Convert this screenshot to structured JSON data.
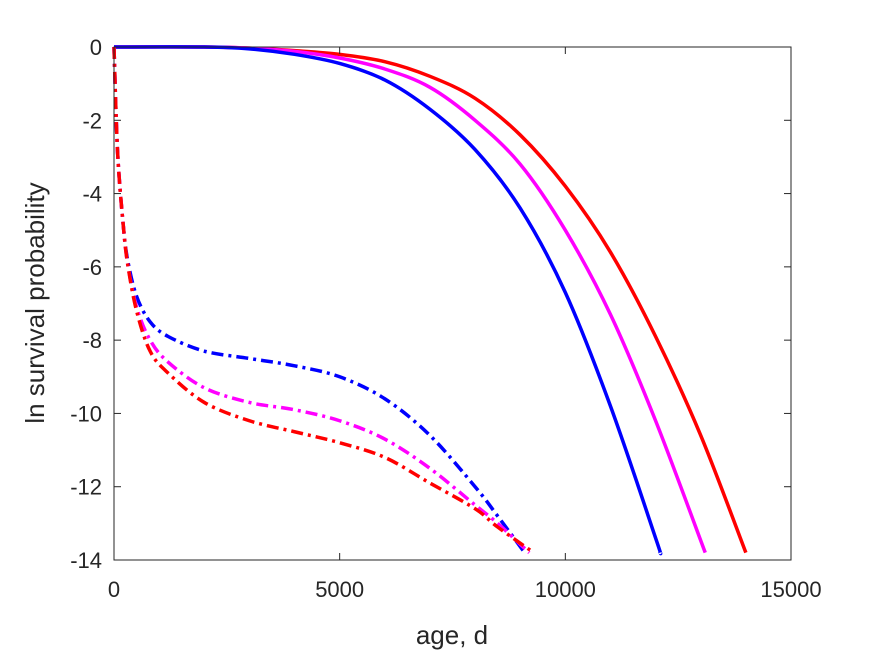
{
  "chart_data": {
    "type": "line",
    "title": "",
    "xlabel": "age, d",
    "ylabel": "ln survival probability",
    "xlim": [
      0,
      15000
    ],
    "ylim": [
      -14,
      0
    ],
    "xticks": [
      0,
      5000,
      10000,
      15000
    ],
    "yticks": [
      0,
      -2,
      -4,
      -6,
      -8,
      -10,
      -12,
      -14
    ],
    "grid": false,
    "legend": "none",
    "series": [
      {
        "color": "#ff0000",
        "style": "solid",
        "x": [
          0,
          2000,
          3000,
          4000,
          5000,
          6000,
          7000,
          8000,
          9000,
          10000,
          11000,
          12000,
          13000,
          14000
        ],
        "y": [
          0,
          0,
          -0.03,
          -0.1,
          -0.2,
          -0.4,
          -0.8,
          -1.4,
          -2.4,
          -3.8,
          -5.6,
          -7.9,
          -10.6,
          -13.8
        ]
      },
      {
        "color": "#ff00ff",
        "style": "solid",
        "x": [
          0,
          2000,
          3000,
          4000,
          5000,
          6000,
          7000,
          8000,
          9000,
          10000,
          11000,
          12000,
          13100
        ],
        "y": [
          0,
          0,
          -0.03,
          -0.12,
          -0.3,
          -0.6,
          -1.1,
          -2.0,
          -3.2,
          -5.0,
          -7.3,
          -10.2,
          -13.8
        ]
      },
      {
        "color": "#0000ff",
        "style": "solid",
        "x": [
          0,
          2000,
          3000,
          4000,
          5000,
          6000,
          7000,
          8000,
          9000,
          10000,
          11000,
          12000,
          12100
        ],
        "y": [
          0,
          0,
          -0.05,
          -0.2,
          -0.45,
          -0.9,
          -1.7,
          -2.8,
          -4.4,
          -6.7,
          -9.8,
          -13.4,
          -13.8
        ]
      },
      {
        "color": "#0000ff",
        "style": "dashdot",
        "x": [
          0,
          50,
          100,
          200,
          300,
          500,
          800,
          1200,
          2000,
          3000,
          4000,
          5000,
          6000,
          7000,
          8000,
          8500,
          9100
        ],
        "y": [
          0,
          -2.0,
          -3.3,
          -4.8,
          -5.8,
          -6.8,
          -7.5,
          -7.9,
          -8.3,
          -8.5,
          -8.7,
          -9.0,
          -9.6,
          -10.6,
          -12.0,
          -12.8,
          -13.8
        ]
      },
      {
        "color": "#ff00ff",
        "style": "dashdot",
        "x": [
          0,
          50,
          100,
          200,
          300,
          500,
          800,
          1200,
          2000,
          3000,
          4000,
          5000,
          6000,
          7000,
          8000,
          8500,
          9200
        ],
        "y": [
          0,
          -2.0,
          -3.3,
          -4.8,
          -5.9,
          -7.1,
          -8.0,
          -8.6,
          -9.3,
          -9.7,
          -9.9,
          -10.2,
          -10.7,
          -11.5,
          -12.5,
          -13.0,
          -13.8
        ]
      },
      {
        "color": "#ff0000",
        "style": "dashdot",
        "x": [
          0,
          50,
          100,
          200,
          300,
          500,
          800,
          1200,
          2000,
          3000,
          4000,
          5000,
          6000,
          7000,
          8000,
          8500,
          9300
        ],
        "y": [
          0,
          -2.0,
          -3.3,
          -4.8,
          -5.9,
          -7.2,
          -8.3,
          -8.9,
          -9.7,
          -10.2,
          -10.5,
          -10.8,
          -11.2,
          -11.9,
          -12.6,
          -13.1,
          -13.8
        ]
      }
    ]
  }
}
